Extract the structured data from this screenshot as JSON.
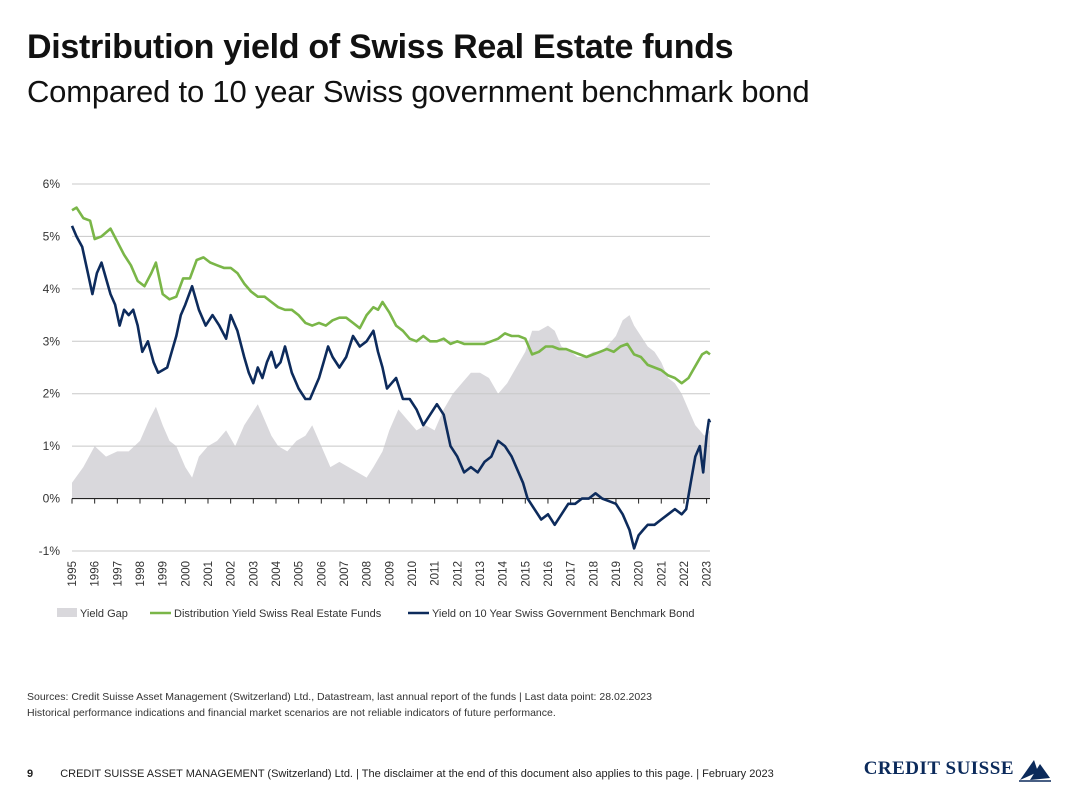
{
  "header": {
    "title": "Distribution yield of Swiss Real Estate funds",
    "subtitle": "Compared to 10 year Swiss government benchmark bond"
  },
  "chart_data": {
    "type": "line",
    "title": "Distribution yield of Swiss Real Estate funds",
    "ylabel": "",
    "xlabel": "",
    "ylim": [
      -1,
      6
    ],
    "xlim": [
      1995,
      2023.15
    ],
    "yticks": [
      -1,
      0,
      1,
      2,
      3,
      4,
      5,
      6
    ],
    "ytick_labels": [
      "-1%",
      "0%",
      "1%",
      "2%",
      "3%",
      "4%",
      "5%",
      "6%"
    ],
    "xtick_labels": [
      "1995",
      "1996",
      "1997",
      "1998",
      "1999",
      "2000",
      "2001",
      "2002",
      "2003",
      "2004",
      "2005",
      "2006",
      "2007",
      "2008",
      "2009",
      "2010",
      "2011",
      "2012",
      "2013",
      "2014",
      "2015",
      "2016",
      "2017",
      "2018",
      "2019",
      "2020",
      "2021",
      "2022",
      "2023"
    ],
    "grid": true,
    "legend_position": "bottom",
    "colors": {
      "gap": "#d9d8dc",
      "funds": "#7ab648",
      "bond": "#0d2b5c",
      "grid": "#c8c8c8",
      "axis": "#222222"
    },
    "series": [
      {
        "name": "Distribution Yield Swiss Real Estate Funds",
        "x": [
          1995.0,
          1995.2,
          1995.5,
          1995.8,
          1996.0,
          1996.3,
          1996.7,
          1997.0,
          1997.3,
          1997.6,
          1997.9,
          1998.2,
          1998.5,
          1998.7,
          1999.0,
          1999.3,
          1999.6,
          1999.9,
          2000.2,
          2000.5,
          2000.8,
          2001.1,
          2001.4,
          2001.7,
          2002.0,
          2002.3,
          2002.6,
          2002.9,
          2003.2,
          2003.5,
          2003.8,
          2004.1,
          2004.4,
          2004.7,
          2005.0,
          2005.3,
          2005.6,
          2005.9,
          2006.2,
          2006.5,
          2006.8,
          2007.1,
          2007.4,
          2007.7,
          2008.0,
          2008.3,
          2008.5,
          2008.7,
          2009.0,
          2009.3,
          2009.6,
          2009.9,
          2010.2,
          2010.5,
          2010.8,
          2011.1,
          2011.4,
          2011.7,
          2012.0,
          2012.3,
          2012.6,
          2012.9,
          2013.2,
          2013.5,
          2013.8,
          2014.1,
          2014.4,
          2014.7,
          2015.0,
          2015.3,
          2015.6,
          2015.9,
          2016.2,
          2016.5,
          2016.8,
          2017.1,
          2017.4,
          2017.7,
          2018.0,
          2018.3,
          2018.6,
          2018.9,
          2019.2,
          2019.5,
          2019.8,
          2020.1,
          2020.4,
          2020.7,
          2021.0,
          2021.3,
          2021.6,
          2021.9,
          2022.2,
          2022.4,
          2022.6,
          2022.8,
          2023.0,
          2023.15
        ],
        "values": [
          5.5,
          5.55,
          5.35,
          5.3,
          4.95,
          5.0,
          5.15,
          4.9,
          4.65,
          4.45,
          4.15,
          4.05,
          4.3,
          4.5,
          3.9,
          3.8,
          3.85,
          4.2,
          4.2,
          4.55,
          4.6,
          4.5,
          4.45,
          4.4,
          4.4,
          4.3,
          4.1,
          3.95,
          3.85,
          3.85,
          3.75,
          3.65,
          3.6,
          3.6,
          3.5,
          3.35,
          3.3,
          3.35,
          3.3,
          3.4,
          3.45,
          3.45,
          3.35,
          3.25,
          3.5,
          3.65,
          3.6,
          3.75,
          3.55,
          3.3,
          3.2,
          3.05,
          3.0,
          3.1,
          3.0,
          3.0,
          3.05,
          2.95,
          3.0,
          2.95,
          2.95,
          2.95,
          2.95,
          3.0,
          3.05,
          3.15,
          3.1,
          3.1,
          3.05,
          2.75,
          2.8,
          2.9,
          2.9,
          2.85,
          2.85,
          2.8,
          2.75,
          2.7,
          2.75,
          2.8,
          2.85,
          2.8,
          2.9,
          2.95,
          2.75,
          2.7,
          2.55,
          2.5,
          2.45,
          2.35,
          2.3,
          2.2,
          2.3,
          2.45,
          2.6,
          2.75,
          2.8,
          2.75
        ]
      },
      {
        "name": "Yield on 10 Year Swiss Government Benchmark Bond",
        "x": [
          1995.0,
          1995.2,
          1995.45,
          1995.7,
          1995.9,
          1996.1,
          1996.3,
          1996.5,
          1996.7,
          1996.9,
          1997.1,
          1997.3,
          1997.5,
          1997.7,
          1997.9,
          1998.1,
          1998.35,
          1998.6,
          1998.8,
          1999.0,
          1999.2,
          1999.4,
          1999.6,
          1999.8,
          2000.0,
          2000.3,
          2000.6,
          2000.9,
          2001.2,
          2001.5,
          2001.8,
          2002.0,
          2002.3,
          2002.6,
          2002.8,
          2003.0,
          2003.2,
          2003.4,
          2003.6,
          2003.8,
          2004.0,
          2004.2,
          2004.4,
          2004.7,
          2005.0,
          2005.3,
          2005.5,
          2005.7,
          2005.9,
          2006.1,
          2006.3,
          2006.5,
          2006.8,
          2007.1,
          2007.4,
          2007.7,
          2008.0,
          2008.3,
          2008.5,
          2008.7,
          2008.9,
          2009.1,
          2009.3,
          2009.6,
          2009.9,
          2010.2,
          2010.5,
          2010.8,
          2011.1,
          2011.4,
          2011.7,
          2012.0,
          2012.3,
          2012.6,
          2012.9,
          2013.2,
          2013.5,
          2013.8,
          2014.1,
          2014.4,
          2014.7,
          2014.9,
          2015.1,
          2015.4,
          2015.7,
          2016.0,
          2016.3,
          2016.6,
          2016.9,
          2017.2,
          2017.5,
          2017.8,
          2018.1,
          2018.4,
          2018.7,
          2019.0,
          2019.3,
          2019.6,
          2019.8,
          2020.0,
          2020.2,
          2020.4,
          2020.7,
          2021.0,
          2021.3,
          2021.6,
          2021.9,
          2022.1,
          2022.3,
          2022.5,
          2022.7,
          2022.85,
          2023.0,
          2023.1,
          2023.15
        ],
        "values": [
          5.2,
          5.0,
          4.8,
          4.3,
          3.9,
          4.3,
          4.5,
          4.2,
          3.9,
          3.7,
          3.3,
          3.6,
          3.5,
          3.6,
          3.3,
          2.8,
          3.0,
          2.6,
          2.4,
          2.45,
          2.5,
          2.8,
          3.1,
          3.5,
          3.7,
          4.05,
          3.6,
          3.3,
          3.5,
          3.3,
          3.05,
          3.5,
          3.2,
          2.7,
          2.4,
          2.2,
          2.5,
          2.3,
          2.6,
          2.8,
          2.5,
          2.6,
          2.9,
          2.4,
          2.1,
          1.9,
          1.9,
          2.1,
          2.3,
          2.6,
          2.9,
          2.7,
          2.5,
          2.7,
          3.1,
          2.9,
          3.0,
          3.2,
          2.8,
          2.5,
          2.1,
          2.2,
          2.3,
          1.9,
          1.9,
          1.7,
          1.4,
          1.6,
          1.8,
          1.6,
          1.0,
          0.8,
          0.5,
          0.6,
          0.5,
          0.7,
          0.8,
          1.1,
          1.0,
          0.8,
          0.5,
          0.3,
          0.0,
          -0.2,
          -0.4,
          -0.3,
          -0.5,
          -0.3,
          -0.1,
          -0.1,
          0.0,
          0.0,
          0.1,
          0.0,
          -0.05,
          -0.1,
          -0.3,
          -0.6,
          -0.95,
          -0.7,
          -0.6,
          -0.5,
          -0.5,
          -0.4,
          -0.3,
          -0.2,
          -0.3,
          -0.2,
          0.3,
          0.8,
          1.0,
          0.5,
          1.2,
          1.5,
          1.45
        ]
      },
      {
        "name": "Yield Gap",
        "x": [
          1995.0,
          1995.5,
          1996.0,
          1996.5,
          1997.0,
          1997.5,
          1998.0,
          1998.4,
          1998.7,
          1999.0,
          1999.3,
          1999.6,
          2000.0,
          2000.3,
          2000.6,
          2001.0,
          2001.4,
          2001.8,
          2002.2,
          2002.6,
          2002.9,
          2003.2,
          2003.5,
          2003.8,
          2004.1,
          2004.5,
          2004.9,
          2005.3,
          2005.6,
          2006.0,
          2006.4,
          2006.8,
          2007.2,
          2007.6,
          2008.0,
          2008.3,
          2008.7,
          2009.0,
          2009.4,
          2009.8,
          2010.2,
          2010.6,
          2011.0,
          2011.4,
          2011.8,
          2012.2,
          2012.6,
          2013.0,
          2013.4,
          2013.8,
          2014.2,
          2014.6,
          2015.0,
          2015.3,
          2015.6,
          2016.0,
          2016.3,
          2016.6,
          2017.0,
          2017.3,
          2017.6,
          2018.0,
          2018.3,
          2018.6,
          2019.0,
          2019.3,
          2019.6,
          2019.8,
          2020.1,
          2020.4,
          2020.7,
          2021.0,
          2021.3,
          2021.6,
          2021.9,
          2022.1,
          2022.3,
          2022.5,
          2022.7,
          2022.9,
          2023.15
        ],
        "values": [
          0.3,
          0.6,
          1.0,
          0.8,
          0.9,
          0.9,
          1.1,
          1.5,
          1.75,
          1.4,
          1.1,
          1.0,
          0.6,
          0.4,
          0.8,
          1.0,
          1.1,
          1.3,
          1.0,
          1.4,
          1.6,
          1.8,
          1.5,
          1.2,
          1.0,
          0.9,
          1.1,
          1.2,
          1.4,
          1.0,
          0.6,
          0.7,
          0.6,
          0.5,
          0.4,
          0.6,
          0.9,
          1.3,
          1.7,
          1.5,
          1.3,
          1.4,
          1.3,
          1.7,
          2.0,
          2.2,
          2.4,
          2.4,
          2.3,
          2.0,
          2.2,
          2.5,
          2.8,
          3.2,
          3.2,
          3.3,
          3.2,
          2.9,
          2.8,
          2.7,
          2.7,
          2.8,
          2.8,
          2.9,
          3.1,
          3.4,
          3.5,
          3.3,
          3.1,
          2.9,
          2.8,
          2.6,
          2.3,
          2.2,
          2.0,
          1.8,
          1.6,
          1.4,
          1.3,
          1.2,
          1.3
        ]
      }
    ]
  },
  "legend": {
    "gap_label": "Yield Gap",
    "funds_label": "Distribution Yield Swiss Real Estate Funds",
    "bond_label": "Yield on 10 Year Swiss Government Benchmark Bond"
  },
  "notes": {
    "sources": "Sources: Credit Suisse Asset Management (Switzerland) Ltd., Datastream, last annual report of the funds | Last data point: 28.02.2023",
    "disclaimer": "Historical performance indications and financial market scenarios are not reliable indicators of future performance."
  },
  "footer": {
    "page_number": "9",
    "text": "CREDIT SUISSE ASSET MANAGEMENT (Switzerland) Ltd. | The disclaimer at the end of this document also applies to this page. | February 2023",
    "logo_text": "CREDIT SUISSE"
  }
}
